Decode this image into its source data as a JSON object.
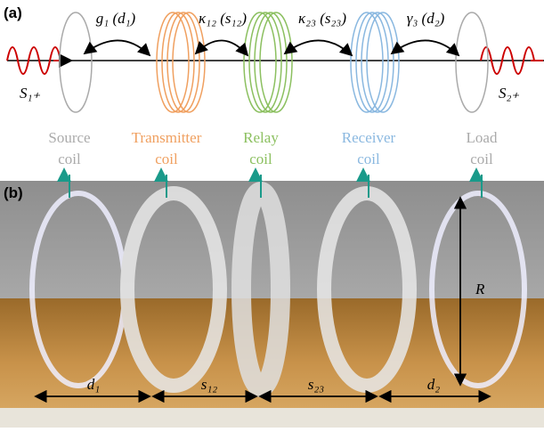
{
  "panel_a": {
    "label": "(a)",
    "couplings": [
      "g₁ (d₁)",
      "κ₁₂ (s₁₂)",
      "κ₂₃ (s₂₃)",
      "γ₃ (d₂)"
    ],
    "input": "S₁₊",
    "output": "S₂₊",
    "coils": [
      [
        "Source",
        "coil"
      ],
      [
        "Transmitter",
        "coil"
      ],
      [
        "Relay",
        "coil"
      ],
      [
        "Receiver",
        "coil"
      ],
      [
        "Load",
        "coil"
      ]
    ]
  },
  "panel_b": {
    "label": "(b)",
    "distances": [
      "d₁",
      "s₁₂",
      "s₂₃",
      "d₂"
    ],
    "radius": "R"
  }
}
